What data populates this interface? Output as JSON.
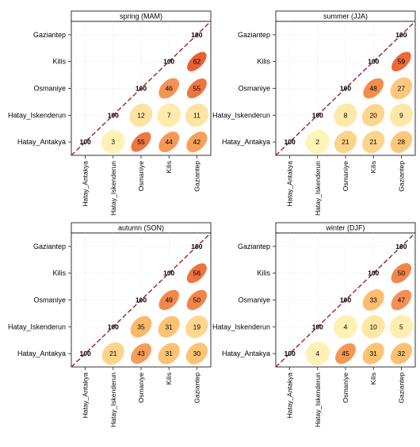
{
  "chart_data": [
    {
      "type": "heatmap",
      "title": "spring (MAM)",
      "rows": [
        "Gaziantep",
        "Kilis",
        "Osmaniye",
        "Hatay_Iskenderun",
        "Hatay_Antakya"
      ],
      "columns": [
        "Hatay_Antakya",
        "Hatay_Iskenderun",
        "Osmaniye",
        "Kilis",
        "Gaziantep"
      ],
      "diagonal": 100,
      "values": [
        [
          null,
          null,
          null,
          null,
          100
        ],
        [
          null,
          null,
          null,
          100,
          62
        ],
        [
          null,
          null,
          100,
          46,
          55
        ],
        [
          null,
          100,
          12,
          7,
          11
        ],
        [
          100,
          3,
          55,
          44,
          42
        ]
      ]
    },
    {
      "type": "heatmap",
      "title": "summer (JJA)",
      "rows": [
        "Gaziantep",
        "Kilis",
        "Osmaniye",
        "Hatay_Iskenderun",
        "Hatay_Antakya"
      ],
      "columns": [
        "Hatay_Antakya",
        "Hatay_Iskenderun",
        "Osmaniye",
        "Kilis",
        "Gaziantep"
      ],
      "diagonal": 100,
      "values": [
        [
          null,
          null,
          null,
          null,
          100
        ],
        [
          null,
          null,
          null,
          100,
          59
        ],
        [
          null,
          null,
          100,
          48,
          27
        ],
        [
          null,
          100,
          8,
          20,
          9
        ],
        [
          100,
          2,
          21,
          21,
          28
        ]
      ]
    },
    {
      "type": "heatmap",
      "title": "autumn (SON)",
      "rows": [
        "Gaziantep",
        "Kilis",
        "Osmaniye",
        "Hatay_Iskenderun",
        "Hatay_Antakya"
      ],
      "columns": [
        "Hatay_Antakya",
        "Hatay_Iskenderun",
        "Osmaniye",
        "Kilis",
        "Gaziantep"
      ],
      "diagonal": 100,
      "values": [
        [
          null,
          null,
          null,
          null,
          100
        ],
        [
          null,
          null,
          null,
          100,
          56
        ],
        [
          null,
          null,
          100,
          49,
          50
        ],
        [
          null,
          100,
          35,
          31,
          19
        ],
        [
          100,
          21,
          43,
          31,
          30
        ]
      ]
    },
    {
      "type": "heatmap",
      "title": "winter (DJF)",
      "rows": [
        "Gaziantep",
        "Kilis",
        "Osmaniye",
        "Hatay_Iskenderun",
        "Hatay_Antakya"
      ],
      "columns": [
        "Hatay_Antakya",
        "Hatay_Iskenderun",
        "Osmaniye",
        "Kilis",
        "Gaziantep"
      ],
      "diagonal": 100,
      "values": [
        [
          null,
          null,
          null,
          null,
          100
        ],
        [
          null,
          null,
          null,
          100,
          50
        ],
        [
          null,
          null,
          100,
          33,
          47
        ],
        [
          null,
          100,
          4,
          10,
          5
        ],
        [
          100,
          4,
          45,
          31,
          32
        ]
      ]
    }
  ],
  "colors": {
    "low": "#fff7bc",
    "mid": "#fdbf6f",
    "high": "#e8552b",
    "diagonal_line": "#9e1b3a",
    "grid": "#e6e6e6",
    "frame": "#000000"
  }
}
